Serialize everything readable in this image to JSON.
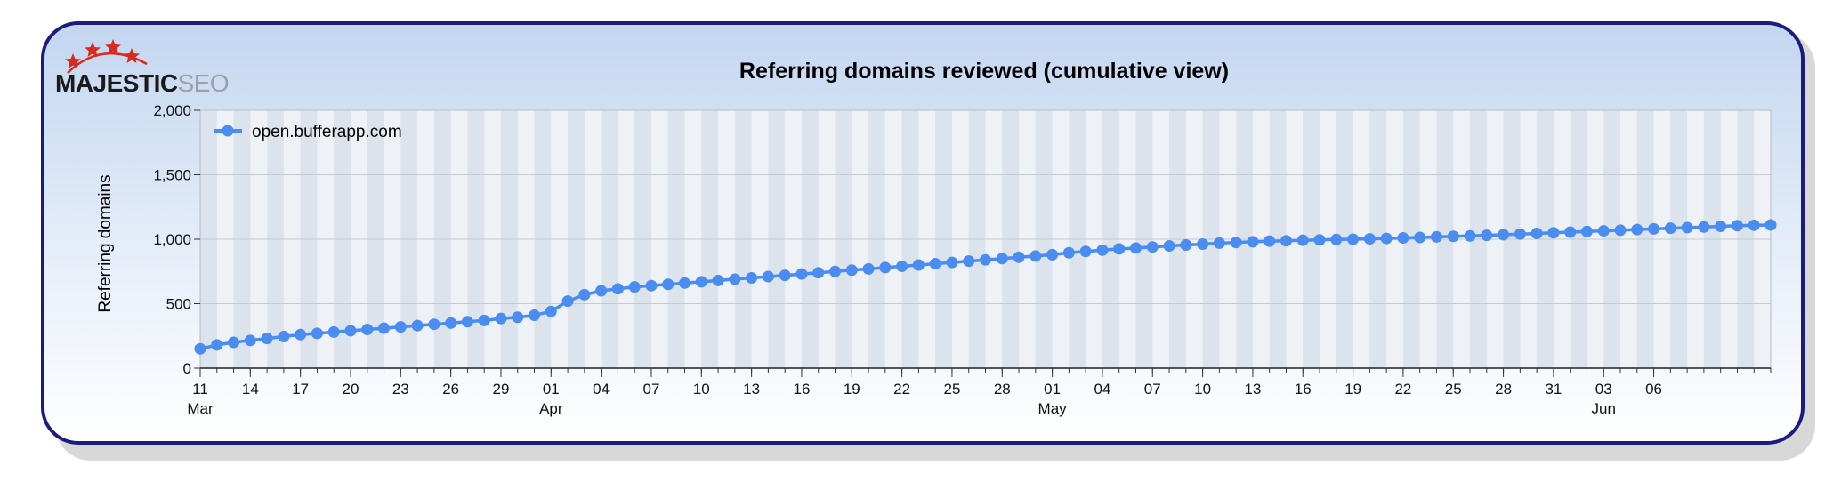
{
  "logo": {
    "main": "MAJESTIC",
    "sub": "SEO"
  },
  "colors": {
    "series": "#4a8cf0",
    "frame": "#1c1c7c",
    "band_dark": "#dde3ec",
    "band_light": "#eef1f6"
  },
  "chart_data": {
    "type": "line",
    "title": "Referring domains reviewed (cumulative view)",
    "xlabel": "",
    "ylabel": "Referring domains",
    "ylim": [
      0,
      2000
    ],
    "yticks": [
      0,
      500,
      1000,
      1500,
      2000
    ],
    "ytick_labels": [
      "0",
      "500",
      "1,000",
      "1,500",
      "2,000"
    ],
    "x_start_date": "03-11",
    "x_step_days": 1,
    "x_tick_labels": [
      {
        "day": 0,
        "label": "11",
        "month": "Mar"
      },
      {
        "day": 3,
        "label": "14"
      },
      {
        "day": 6,
        "label": "17"
      },
      {
        "day": 9,
        "label": "20"
      },
      {
        "day": 12,
        "label": "23"
      },
      {
        "day": 15,
        "label": "26"
      },
      {
        "day": 18,
        "label": "29"
      },
      {
        "day": 21,
        "label": "01",
        "month": "Apr"
      },
      {
        "day": 24,
        "label": "04"
      },
      {
        "day": 27,
        "label": "07"
      },
      {
        "day": 30,
        "label": "10"
      },
      {
        "day": 33,
        "label": "13"
      },
      {
        "day": 36,
        "label": "16"
      },
      {
        "day": 39,
        "label": "19"
      },
      {
        "day": 42,
        "label": "22"
      },
      {
        "day": 45,
        "label": "25"
      },
      {
        "day": 48,
        "label": "28"
      },
      {
        "day": 51,
        "label": "01",
        "month": "May"
      },
      {
        "day": 54,
        "label": "04"
      },
      {
        "day": 57,
        "label": "07"
      },
      {
        "day": 60,
        "label": "10"
      },
      {
        "day": 63,
        "label": "13"
      },
      {
        "day": 66,
        "label": "16"
      },
      {
        "day": 69,
        "label": "19"
      },
      {
        "day": 72,
        "label": "22"
      },
      {
        "day": 75,
        "label": "25"
      },
      {
        "day": 78,
        "label": "28"
      },
      {
        "day": 81,
        "label": "31"
      },
      {
        "day": 84,
        "label": "03",
        "month": "Jun"
      },
      {
        "day": 87,
        "label": "06"
      }
    ],
    "legend": {
      "position": "top-left"
    },
    "grid": true,
    "series": [
      {
        "name": "open.bufferapp.com",
        "values": [
          150,
          180,
          200,
          215,
          230,
          245,
          260,
          270,
          280,
          290,
          300,
          310,
          320,
          330,
          340,
          350,
          360,
          370,
          385,
          395,
          410,
          440,
          520,
          570,
          600,
          615,
          630,
          640,
          650,
          660,
          670,
          680,
          690,
          700,
          710,
          720,
          730,
          740,
          750,
          760,
          770,
          780,
          790,
          800,
          810,
          820,
          830,
          840,
          850,
          860,
          870,
          880,
          895,
          905,
          915,
          925,
          932,
          940,
          948,
          955,
          962,
          970,
          975,
          980,
          985,
          988,
          992,
          995,
          998,
          1000,
          1003,
          1006,
          1010,
          1014,
          1018,
          1022,
          1026,
          1030,
          1035,
          1040,
          1045,
          1050,
          1055,
          1060,
          1065,
          1070,
          1075,
          1080,
          1085,
          1090,
          1095,
          1100,
          1105,
          1108,
          1110
        ]
      }
    ]
  }
}
